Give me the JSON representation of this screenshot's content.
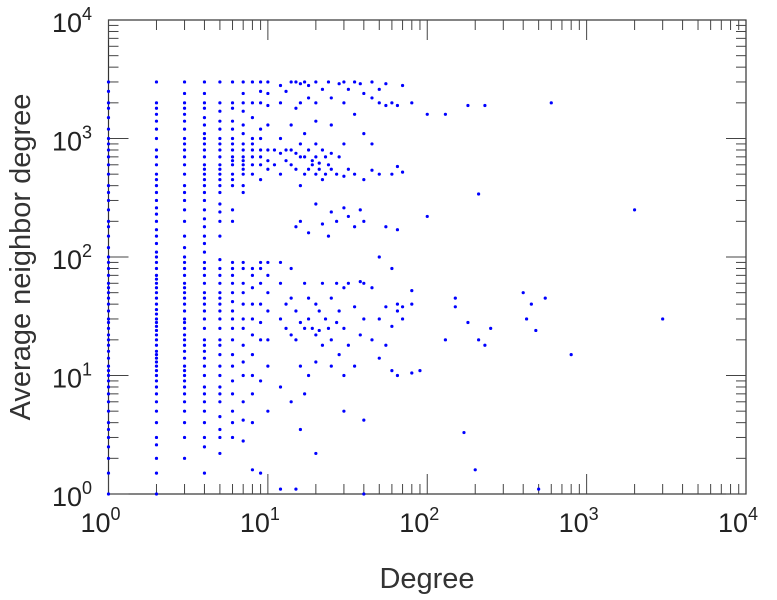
{
  "chart_data": {
    "type": "scatter",
    "title": "",
    "xlabel": "Degree",
    "ylabel": "Average neighbor degree",
    "xscale": "log",
    "yscale": "log",
    "xlim": [
      1,
      10000
    ],
    "ylim": [
      1,
      10000
    ],
    "grid": false,
    "marker_color": "#0000ff",
    "x_ticks": [
      {
        "base": "10",
        "exp": "0"
      },
      {
        "base": "10",
        "exp": "1"
      },
      {
        "base": "10",
        "exp": "2"
      },
      {
        "base": "10",
        "exp": "3"
      },
      {
        "base": "10",
        "exp": "4"
      }
    ],
    "y_ticks": [
      {
        "base": "10",
        "exp": "0"
      },
      {
        "base": "10",
        "exp": "1"
      },
      {
        "base": "10",
        "exp": "2"
      },
      {
        "base": "10",
        "exp": "3"
      },
      {
        "base": "10",
        "exp": "4"
      }
    ],
    "columns": [
      {
        "x": 1,
        "y": [
          1,
          1.5,
          2,
          2.5,
          3,
          3.5,
          4,
          5,
          6,
          7,
          8,
          9,
          10,
          11,
          12,
          14,
          16,
          18,
          20,
          22,
          25,
          28,
          30,
          35,
          40,
          45,
          50,
          55,
          60,
          70,
          80,
          90,
          100,
          120,
          150,
          180,
          200,
          250,
          300,
          350,
          400,
          500,
          600,
          700,
          800,
          900,
          1000,
          1200,
          1500,
          1800,
          2000,
          2500,
          3000
        ]
      },
      {
        "x": 2,
        "y": [
          1,
          1.5,
          2,
          2.6,
          3,
          4,
          5,
          6,
          7,
          8,
          9,
          10,
          11,
          12,
          13,
          14,
          15,
          16,
          18,
          20,
          22,
          24,
          26,
          28,
          30,
          33,
          36,
          40,
          45,
          50,
          55,
          60,
          65,
          70,
          80,
          90,
          100,
          110,
          130,
          150,
          170,
          200,
          230,
          260,
          300,
          350,
          400,
          450,
          500,
          600,
          700,
          800,
          1000,
          1200,
          1400,
          1600,
          1800,
          2000,
          3000
        ]
      },
      {
        "x": 3,
        "y": [
          2,
          3,
          4,
          5,
          6,
          7,
          8,
          9,
          10,
          11,
          12,
          14,
          16,
          18,
          20,
          22,
          25,
          28,
          30,
          35,
          40,
          45,
          50,
          55,
          60,
          70,
          80,
          90,
          100,
          120,
          150,
          200,
          250,
          300,
          350,
          400,
          500,
          600,
          700,
          800,
          900,
          1000,
          1200,
          1400,
          1600,
          1800,
          2000,
          2400,
          3000
        ]
      },
      {
        "x": 4,
        "y": [
          1.5,
          2.5,
          3,
          4,
          5,
          6,
          7,
          8,
          10,
          12,
          14,
          16,
          18,
          20,
          25,
          30,
          35,
          40,
          45,
          50,
          60,
          70,
          80,
          90,
          110,
          130,
          150,
          180,
          210,
          250,
          300,
          350,
          400,
          450,
          500,
          550,
          600,
          700,
          800,
          900,
          1000,
          1100,
          1300,
          1500,
          1800,
          2000,
          2400,
          3000
        ]
      },
      {
        "x": 5,
        "y": [
          2.2,
          3,
          3.5,
          4.5,
          6,
          7,
          8,
          10,
          12,
          15,
          18,
          20,
          25,
          30,
          35,
          40,
          45,
          50,
          60,
          70,
          80,
          95,
          150,
          200,
          240,
          280,
          350,
          400,
          450,
          500,
          550,
          600,
          700,
          800,
          900,
          1000,
          1200,
          1400,
          1700,
          2000,
          3000
        ]
      },
      {
        "x": 6,
        "y": [
          3,
          4,
          5,
          7,
          9,
          12,
          15,
          20,
          25,
          30,
          35,
          42,
          50,
          60,
          70,
          80,
          90,
          200,
          250,
          400,
          450,
          500,
          600,
          650,
          700,
          800,
          900,
          1000,
          1200,
          1400,
          1800,
          2000,
          3000
        ]
      },
      {
        "x": 7,
        "y": [
          2.8,
          4.2,
          6,
          10,
          13,
          18,
          25,
          30,
          40,
          50,
          60,
          80,
          90,
          350,
          400,
          500,
          550,
          600,
          650,
          700,
          800,
          900,
          1100,
          1300,
          1700,
          2000,
          2400,
          3000
        ]
      },
      {
        "x": 8,
        "y": [
          1.6,
          4,
          7,
          10,
          15,
          22,
          30,
          40,
          55,
          70,
          80,
          500,
          600,
          700,
          800,
          900,
          1000,
          1500,
          2000,
          3000
        ]
      },
      {
        "x": 9,
        "y": [
          1.5,
          9,
          20,
          28,
          40,
          60,
          80,
          90,
          450,
          600,
          700,
          800,
          1000,
          1200,
          2000,
          2500,
          3000
        ]
      },
      {
        "x": 10,
        "y": [
          5,
          12,
          20,
          35,
          50,
          70,
          90,
          550,
          650,
          800,
          1300,
          1900,
          2400,
          3000
        ]
      }
    ],
    "points": [
      [
        11,
        800
      ],
      [
        11,
        600
      ],
      [
        12,
        1.1
      ],
      [
        12,
        8
      ],
      [
        12,
        30
      ],
      [
        12,
        60
      ],
      [
        12,
        90
      ],
      [
        12,
        500
      ],
      [
        12,
        750
      ],
      [
        12,
        1000
      ],
      [
        12,
        2000
      ],
      [
        12,
        2800
      ],
      [
        13,
        40
      ],
      [
        13,
        25
      ],
      [
        13,
        650
      ],
      [
        13,
        800
      ],
      [
        13,
        2500
      ],
      [
        14,
        6
      ],
      [
        14,
        22
      ],
      [
        14,
        45
      ],
      [
        14,
        80
      ],
      [
        14,
        600
      ],
      [
        14,
        800
      ],
      [
        14,
        1300
      ],
      [
        14,
        3000
      ],
      [
        15,
        1.1
      ],
      [
        15,
        20
      ],
      [
        15,
        35
      ],
      [
        15,
        180
      ],
      [
        15,
        550
      ],
      [
        15,
        750
      ],
      [
        15,
        1800
      ],
      [
        15,
        3000
      ],
      [
        16,
        3.5
      ],
      [
        16,
        12
      ],
      [
        16,
        28
      ],
      [
        16,
        200
      ],
      [
        16,
        400
      ],
      [
        16,
        700
      ],
      [
        16,
        900
      ],
      [
        16,
        2000
      ],
      [
        16,
        2900
      ],
      [
        17,
        7
      ],
      [
        17,
        25
      ],
      [
        17,
        60
      ],
      [
        17,
        500
      ],
      [
        17,
        700
      ],
      [
        17,
        1100
      ],
      [
        17,
        3000
      ],
      [
        18,
        10
      ],
      [
        18,
        30
      ],
      [
        18,
        45
      ],
      [
        18,
        160
      ],
      [
        18,
        550
      ],
      [
        18,
        800
      ],
      [
        18,
        2200
      ],
      [
        18,
        2800
      ],
      [
        19,
        25
      ],
      [
        19,
        600
      ],
      [
        19,
        650
      ],
      [
        20,
        2.2
      ],
      [
        20,
        13
      ],
      [
        20,
        22
      ],
      [
        20,
        40
      ],
      [
        20,
        280
      ],
      [
        20,
        500
      ],
      [
        20,
        700
      ],
      [
        20,
        900
      ],
      [
        20,
        1400
      ],
      [
        20,
        2000
      ],
      [
        20,
        3000
      ],
      [
        21,
        24
      ],
      [
        21,
        35
      ],
      [
        21,
        550
      ],
      [
        21,
        620
      ],
      [
        22,
        18
      ],
      [
        22,
        60
      ],
      [
        22,
        190
      ],
      [
        22,
        450
      ],
      [
        22,
        800
      ],
      [
        22,
        2600
      ],
      [
        23,
        30
      ],
      [
        23,
        500
      ],
      [
        23,
        700
      ],
      [
        24,
        25
      ],
      [
        24,
        150
      ],
      [
        24,
        600
      ],
      [
        24,
        3000
      ],
      [
        25,
        12
      ],
      [
        25,
        20
      ],
      [
        25,
        45
      ],
      [
        25,
        240
      ],
      [
        25,
        550
      ],
      [
        25,
        750
      ],
      [
        25,
        1300
      ],
      [
        25,
        2200
      ],
      [
        27,
        28
      ],
      [
        27,
        60
      ],
      [
        27,
        200
      ],
      [
        27,
        500
      ],
      [
        28,
        15
      ],
      [
        28,
        35
      ],
      [
        28,
        700
      ],
      [
        28,
        2900
      ],
      [
        30,
        5
      ],
      [
        30,
        10
      ],
      [
        30,
        25
      ],
      [
        30,
        55
      ],
      [
        30,
        260
      ],
      [
        30,
        480
      ],
      [
        30,
        900
      ],
      [
        30,
        2000
      ],
      [
        30,
        3000
      ],
      [
        32,
        60
      ],
      [
        32,
        18
      ],
      [
        32,
        220
      ],
      [
        32,
        550
      ],
      [
        32,
        2600
      ],
      [
        35,
        12
      ],
      [
        35,
        38
      ],
      [
        35,
        180
      ],
      [
        35,
        500
      ],
      [
        35,
        1600
      ],
      [
        35,
        3000
      ],
      [
        38,
        62
      ],
      [
        38,
        22
      ],
      [
        38,
        250
      ],
      [
        38,
        2900
      ],
      [
        40,
        1
      ],
      [
        40,
        4.2
      ],
      [
        40,
        30
      ],
      [
        40,
        60
      ],
      [
        40,
        200
      ],
      [
        40,
        450
      ],
      [
        40,
        1100
      ],
      [
        40,
        2400
      ],
      [
        45,
        20
      ],
      [
        45,
        55
      ],
      [
        45,
        540
      ],
      [
        45,
        900
      ],
      [
        45,
        2200
      ],
      [
        45,
        3000
      ],
      [
        50,
        14
      ],
      [
        50,
        30
      ],
      [
        50,
        100
      ],
      [
        50,
        500
      ],
      [
        50,
        2000
      ],
      [
        50,
        2600
      ],
      [
        55,
        38
      ],
      [
        55,
        18
      ],
      [
        55,
        180
      ],
      [
        55,
        1900
      ],
      [
        55,
        2900
      ],
      [
        60,
        11
      ],
      [
        60,
        26
      ],
      [
        60,
        80
      ],
      [
        60,
        500
      ],
      [
        60,
        2000
      ],
      [
        65,
        10
      ],
      [
        65,
        35
      ],
      [
        65,
        40
      ],
      [
        65,
        170
      ],
      [
        65,
        580
      ],
      [
        65,
        1900
      ],
      [
        70,
        30
      ],
      [
        70,
        38
      ],
      [
        70,
        520
      ],
      [
        70,
        2800
      ],
      [
        80,
        52
      ],
      [
        80,
        10.5
      ],
      [
        80,
        2000
      ],
      [
        80,
        40
      ],
      [
        90,
        11
      ],
      [
        100,
        220
      ],
      [
        100,
        1600
      ],
      [
        130,
        1600
      ],
      [
        130,
        20
      ],
      [
        150,
        45
      ],
      [
        150,
        38
      ],
      [
        170,
        3.3
      ],
      [
        180,
        28
      ],
      [
        180,
        1900
      ],
      [
        200,
        1.6
      ],
      [
        210,
        340
      ],
      [
        210,
        20
      ],
      [
        230,
        18
      ],
      [
        230,
        1900
      ],
      [
        250,
        25
      ],
      [
        400,
        50
      ],
      [
        420,
        30
      ],
      [
        450,
        40
      ],
      [
        480,
        24
      ],
      [
        500,
        1.1
      ],
      [
        550,
        45
      ],
      [
        600,
        2000
      ],
      [
        800,
        15
      ],
      [
        2000,
        250
      ],
      [
        3000,
        30
      ]
    ]
  }
}
